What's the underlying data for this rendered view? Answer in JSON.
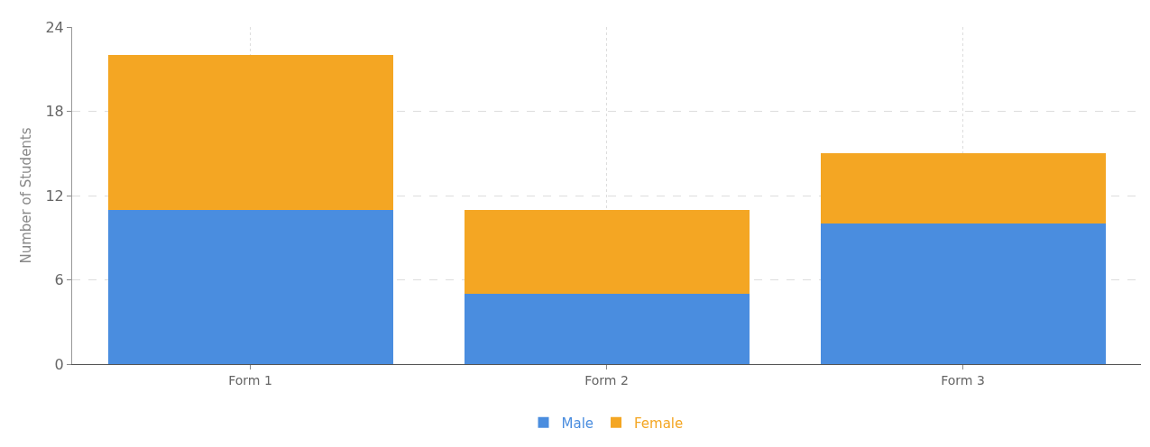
{
  "chart_data": {
    "type": "bar",
    "ylabel": "Number of Students",
    "categories": [
      "Form 1",
      "Form 2",
      "Form 3"
    ],
    "series": [
      {
        "name": "Male",
        "color": "#4a8ddf",
        "values": [
          11,
          5,
          10
        ]
      },
      {
        "name": "Female",
        "color": "#f4a623",
        "values": [
          11,
          6,
          5
        ]
      }
    ],
    "stacked": true,
    "ylim": [
      0,
      24
    ],
    "yticks": [
      0,
      6,
      12,
      18,
      24
    ],
    "grid": true,
    "legend": "bottom"
  }
}
